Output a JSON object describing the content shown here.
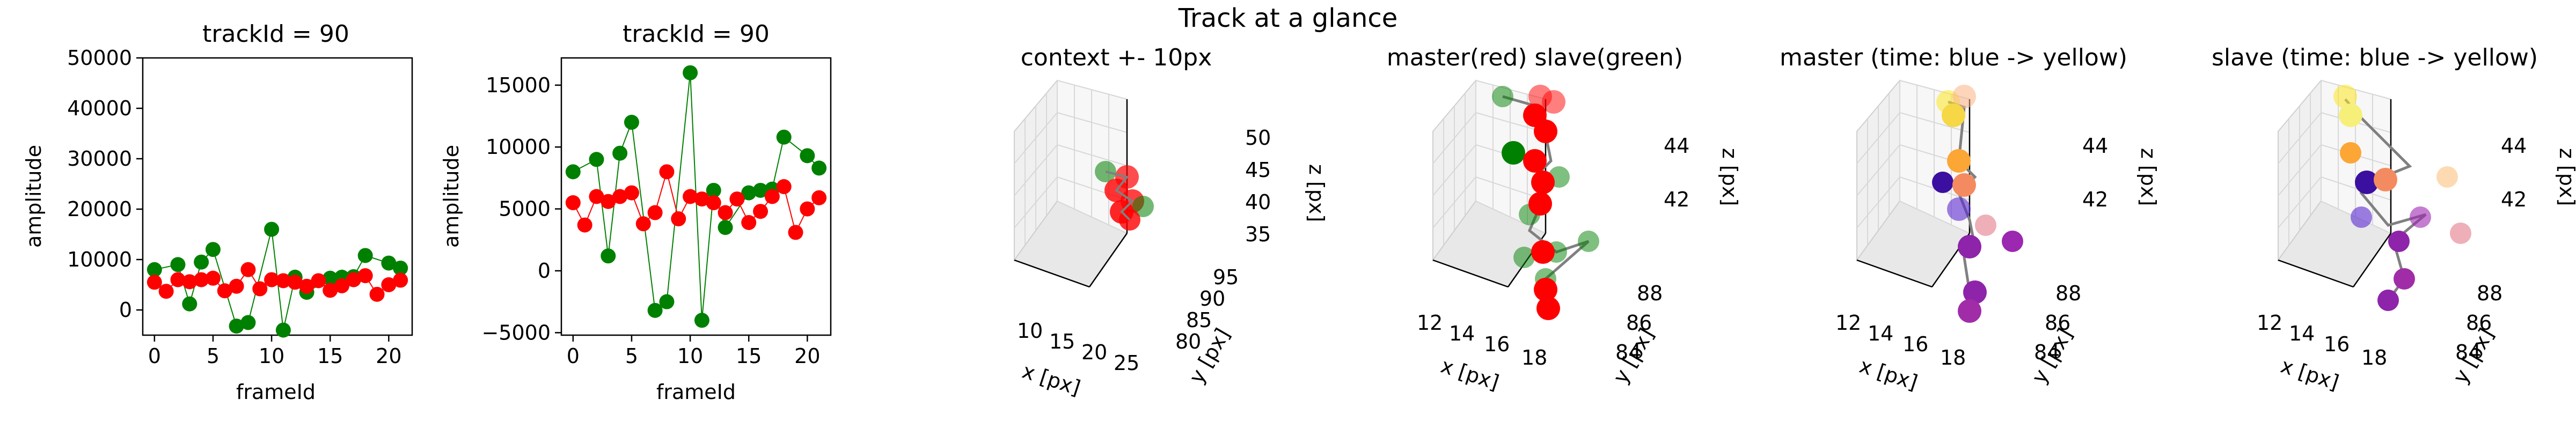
{
  "suptitle": "Track at a glance",
  "colors": {
    "red": "#ff0000",
    "green": "#008000",
    "line_gray": "#808080"
  },
  "chart_data": [
    {
      "type": "scatter",
      "title": "trackId = 90",
      "xlabel": "frameId",
      "ylabel": "amplitude",
      "xlim": [
        -1,
        22
      ],
      "ylim": [
        -5000,
        50000
      ],
      "xticks": [
        "0",
        "5",
        "10",
        "15",
        "20"
      ],
      "yticks": [
        "0",
        "10000",
        "20000",
        "30000",
        "40000",
        "50000"
      ],
      "series": [
        {
          "color": "green",
          "x": [
            0,
            1,
            2,
            3,
            4,
            5,
            6,
            7,
            8,
            9,
            10,
            11,
            12,
            13,
            14,
            15,
            16,
            17,
            18,
            19,
            20,
            21
          ],
          "y": [
            8000,
            null,
            9000,
            1200,
            9500,
            12000,
            null,
            -3200,
            -2500,
            null,
            16000,
            -4000,
            6500,
            3500,
            null,
            6300,
            6500,
            6600,
            10800,
            null,
            9300,
            8300
          ]
        },
        {
          "color": "red",
          "x": [
            0,
            1,
            2,
            3,
            4,
            5,
            6,
            7,
            8,
            9,
            10,
            11,
            12,
            13,
            14,
            15,
            16,
            17,
            18,
            19,
            20,
            21
          ],
          "y": [
            5500,
            3700,
            6000,
            5600,
            6000,
            6300,
            3800,
            4700,
            8000,
            4200,
            6000,
            5800,
            5500,
            4700,
            5800,
            3900,
            4800,
            6000,
            6800,
            3100,
            5000,
            5900
          ]
        }
      ]
    },
    {
      "type": "scatter",
      "title": "trackId = 90",
      "xlabel": "frameId",
      "ylabel": "amplitude",
      "xlim": [
        -1,
        22
      ],
      "ylim": [
        -5200,
        17200
      ],
      "xticks": [
        "0",
        "5",
        "10",
        "15",
        "20"
      ],
      "yticks": [
        "−5000",
        "0",
        "5000",
        "10000",
        "15000"
      ],
      "series": [
        {
          "color": "green",
          "x": [
            0,
            1,
            2,
            3,
            4,
            5,
            6,
            7,
            8,
            9,
            10,
            11,
            12,
            13,
            14,
            15,
            16,
            17,
            18,
            19,
            20,
            21
          ],
          "y": [
            8000,
            null,
            9000,
            1200,
            9500,
            12000,
            null,
            -3200,
            -2500,
            null,
            16000,
            -4000,
            6500,
            3500,
            null,
            6300,
            6500,
            6600,
            10800,
            null,
            9300,
            8300
          ]
        },
        {
          "color": "red",
          "x": [
            0,
            1,
            2,
            3,
            4,
            5,
            6,
            7,
            8,
            9,
            10,
            11,
            12,
            13,
            14,
            15,
            16,
            17,
            18,
            19,
            20,
            21
          ],
          "y": [
            5500,
            3700,
            6000,
            5600,
            6000,
            6300,
            3800,
            4700,
            8000,
            4200,
            6000,
            5800,
            5500,
            4700,
            5800,
            3900,
            4800,
            6000,
            6800,
            3100,
            5000,
            5900
          ]
        }
      ]
    },
    {
      "type": "scatter3d",
      "title": "context +- 10px",
      "xlabel": "x [px]",
      "ylabel": "y [px]",
      "zlabel": "z [px]",
      "xticks": [
        "10",
        "15",
        "20",
        "25"
      ],
      "yticks": [
        "80",
        "85",
        "90",
        "95"
      ],
      "zticks": [
        "35",
        "40",
        "45",
        "50"
      ]
    },
    {
      "type": "scatter3d",
      "title": "master(red) slave(green)",
      "xlabel": "x [px]",
      "ylabel": "y [px]",
      "zlabel": "z [px]",
      "xticks": [
        "12",
        "14",
        "16",
        "18"
      ],
      "yticks": [
        "84",
        "86",
        "88"
      ],
      "zticks": [
        "42",
        "44"
      ]
    },
    {
      "type": "scatter3d",
      "title": "master (time: blue -> yellow)",
      "xlabel": "x [px]",
      "ylabel": "y [px]",
      "zlabel": "z [px]",
      "xticks": [
        "12",
        "14",
        "16",
        "18"
      ],
      "yticks": [
        "84",
        "86",
        "88"
      ],
      "zticks": [
        "42",
        "44"
      ]
    },
    {
      "type": "scatter3d",
      "title": "slave (time: blue -> yellow)",
      "xlabel": "x [px]",
      "ylabel": "y [px]",
      "zlabel": "z [px]",
      "xticks": [
        "12",
        "14",
        "16",
        "18"
      ],
      "yticks": [
        "84",
        "86",
        "88"
      ],
      "zticks": [
        "42",
        "44"
      ]
    }
  ]
}
